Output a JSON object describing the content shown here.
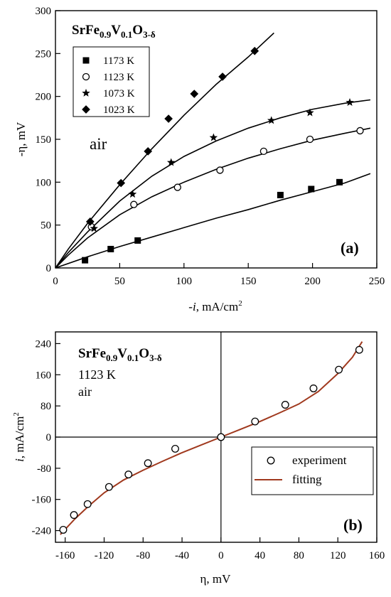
{
  "chart_data": [
    {
      "type": "scatter",
      "panel": "(a)",
      "formula": {
        "base": "SrFe",
        "s1": "0.9",
        "m1": "V",
        "s2": "0.1",
        "m2": "O",
        "s3": "3-δ"
      },
      "annotation": "air",
      "xlabel": {
        "sign": "-",
        "var": "i",
        "rest": ", mA/cm",
        "sup": "2"
      },
      "ylabel": "-η, mV",
      "xlim": [
        0,
        250
      ],
      "ylim": [
        0,
        300
      ],
      "xticks": [
        0,
        50,
        100,
        150,
        200,
        250
      ],
      "yticks": [
        0,
        50,
        100,
        150,
        200,
        250,
        300
      ],
      "legend_position": "top-left",
      "series": [
        {
          "name": "1173 K",
          "marker": "square",
          "x": [
            23,
            43,
            64,
            175,
            199,
            221
          ],
          "y": [
            9,
            22,
            32,
            85,
            92,
            100
          ],
          "fit": [
            [
              0,
              0
            ],
            [
              25,
              13
            ],
            [
              50,
              25
            ],
            [
              75,
              36
            ],
            [
              100,
              47
            ],
            [
              125,
              58
            ],
            [
              150,
              68
            ],
            [
              175,
              79
            ],
            [
              200,
              89
            ],
            [
              225,
              99
            ],
            [
              245,
              110
            ]
          ]
        },
        {
          "name": "1123 K",
          "marker": "circle",
          "x": [
            28,
            61,
            95,
            128,
            162,
            198,
            237
          ],
          "y": [
            48,
            74,
            94,
            114,
            136,
            150,
            160
          ],
          "fit": [
            [
              0,
              0
            ],
            [
              10,
              15
            ],
            [
              25,
              35
            ],
            [
              50,
              62
            ],
            [
              75,
              83
            ],
            [
              100,
              100
            ],
            [
              125,
              115
            ],
            [
              150,
              128
            ],
            [
              175,
              139
            ],
            [
              200,
              149
            ],
            [
              225,
              157
            ],
            [
              245,
              163
            ]
          ]
        },
        {
          "name": "1073 K",
          "marker": "star",
          "x": [
            30,
            60,
            90,
            123,
            168,
            198,
            229
          ],
          "y": [
            46,
            86,
            123,
            152,
            172,
            181,
            193
          ],
          "fit": [
            [
              0,
              0
            ],
            [
              10,
              18
            ],
            [
              25,
              42
            ],
            [
              50,
              78
            ],
            [
              75,
              107
            ],
            [
              100,
              130
            ],
            [
              125,
              148
            ],
            [
              150,
              163
            ],
            [
              175,
              175
            ],
            [
              200,
              185
            ],
            [
              225,
              192
            ],
            [
              245,
              196
            ]
          ]
        },
        {
          "name": "1023 K",
          "marker": "diamond",
          "x": [
            27,
            51,
            72,
            88,
            108,
            130,
            155
          ],
          "y": [
            54,
            99,
            136,
            174,
            203,
            223,
            253
          ],
          "fit": [
            [
              0,
              0
            ],
            [
              10,
              22
            ],
            [
              25,
              52
            ],
            [
              50,
              97
            ],
            [
              75,
              139
            ],
            [
              100,
              178
            ],
            [
              125,
              214
            ],
            [
              150,
              246
            ],
            [
              170,
              274
            ]
          ]
        }
      ]
    },
    {
      "type": "scatter",
      "panel": "(b)",
      "formula": {
        "base": "SrFe",
        "s1": "0.9",
        "m1": "V",
        "s2": "0.1",
        "m2": "O",
        "s3": "3-δ"
      },
      "annotation_lines": [
        "1123 K",
        "air"
      ],
      "xlabel": "η, mV",
      "ylabel": {
        "var": "i",
        "rest": ", mA/cm",
        "sup": "2"
      },
      "xlim": [
        -170,
        160
      ],
      "ylim": [
        -270,
        270
      ],
      "xticks": [
        -160,
        -120,
        -80,
        -40,
        0,
        40,
        80,
        120,
        160
      ],
      "yticks": [
        -240,
        -160,
        -80,
        0,
        80,
        160,
        240
      ],
      "legend_position": "bottom-right",
      "series": [
        {
          "name": "experiment",
          "marker": "circle",
          "x": [
            -162,
            -151,
            -137,
            -115,
            -95,
            -75,
            -47,
            0,
            35,
            66,
            95,
            121,
            142
          ],
          "y": [
            -238,
            -200,
            -172,
            -128,
            -96,
            -67,
            -30,
            0,
            40,
            83,
            125,
            173,
            224
          ]
        },
        {
          "name": "fitting",
          "line": true,
          "color": "#a0391e",
          "x": [
            -165,
            -150,
            -135,
            -120,
            -100,
            -80,
            -60,
            -40,
            -20,
            0,
            20,
            40,
            60,
            80,
            100,
            120,
            135,
            145
          ],
          "y": [
            -250,
            -210,
            -175,
            -143,
            -110,
            -85,
            -62,
            -40,
            -20,
            0,
            20,
            40,
            62,
            85,
            117,
            163,
            205,
            245
          ]
        }
      ]
    }
  ]
}
